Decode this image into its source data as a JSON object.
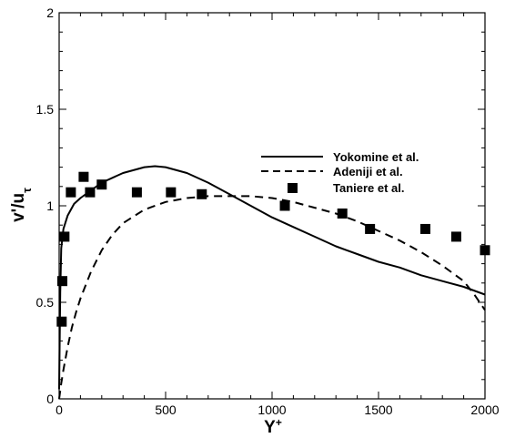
{
  "chart_data": {
    "type": "line",
    "title": "",
    "xlabel": "Y",
    "xlabel_superscript": "+",
    "ylabel": "v'/u",
    "ylabel_subscript": "τ",
    "xlim": [
      0,
      2000
    ],
    "ylim": [
      0,
      2
    ],
    "x_ticks": [
      {
        "value": 0,
        "label": "0"
      },
      {
        "value": 500,
        "label": "500"
      },
      {
        "value": 1000,
        "label": "1000"
      },
      {
        "value": 1500,
        "label": "1500"
      },
      {
        "value": 2000,
        "label": "2000"
      }
    ],
    "y_ticks": [
      {
        "value": 0,
        "label": "0"
      },
      {
        "value": 0.5,
        "label": "0.5"
      },
      {
        "value": 1,
        "label": "1"
      },
      {
        "value": 1.5,
        "label": "1.5"
      },
      {
        "value": 2,
        "label": "2"
      }
    ],
    "grid": false,
    "legend_position": "top-right",
    "series": [
      {
        "name": "Yokomine et al.",
        "style": "solid-line",
        "color": "#000000",
        "x": [
          0,
          5,
          10,
          20,
          40,
          70,
          100,
          150,
          200,
          300,
          400,
          450,
          500,
          600,
          700,
          800,
          900,
          1000,
          1100,
          1200,
          1300,
          1400,
          1500,
          1600,
          1700,
          1800,
          1900,
          2000
        ],
        "y": [
          0.05,
          0.55,
          0.78,
          0.88,
          0.95,
          1.01,
          1.04,
          1.08,
          1.12,
          1.17,
          1.2,
          1.205,
          1.2,
          1.17,
          1.12,
          1.06,
          1.0,
          0.94,
          0.89,
          0.84,
          0.79,
          0.75,
          0.71,
          0.68,
          0.64,
          0.61,
          0.58,
          0.54
        ]
      },
      {
        "name": "Adeniji et al.",
        "style": "dashed-line",
        "color": "#000000",
        "x": [
          0,
          10,
          20,
          40,
          60,
          80,
          100,
          150,
          200,
          250,
          300,
          400,
          500,
          600,
          700,
          800,
          900,
          1000,
          1100,
          1200,
          1300,
          1400,
          1500,
          1600,
          1700,
          1800,
          1900,
          1950,
          2000
        ],
        "y": [
          0.0,
          0.08,
          0.15,
          0.27,
          0.37,
          0.45,
          0.52,
          0.66,
          0.77,
          0.85,
          0.91,
          0.98,
          1.02,
          1.04,
          1.05,
          1.05,
          1.05,
          1.04,
          1.02,
          0.99,
          0.96,
          0.92,
          0.87,
          0.82,
          0.76,
          0.69,
          0.61,
          0.54,
          0.46
        ]
      },
      {
        "name": "Taniere et al.",
        "style": "square-markers",
        "color": "#000000",
        "x": [
          12,
          15,
          25,
          55,
          115,
          145,
          200,
          365,
          525,
          670,
          1060,
          1330,
          1460,
          1720,
          1865,
          2000
        ],
        "y": [
          0.4,
          0.61,
          0.84,
          1.07,
          1.15,
          1.07,
          1.11,
          1.07,
          1.07,
          1.06,
          1.0,
          0.96,
          0.88,
          0.88,
          0.84,
          0.77
        ]
      }
    ]
  }
}
